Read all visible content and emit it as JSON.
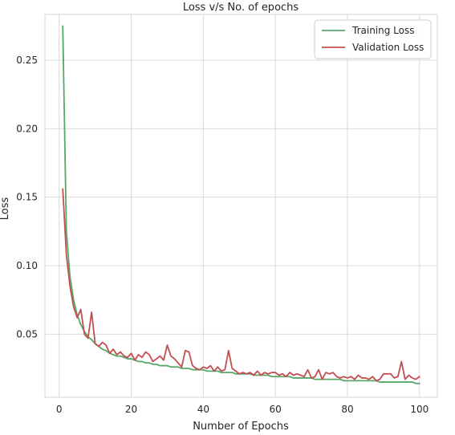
{
  "chart_data": {
    "type": "line",
    "title": "Loss v/s No. of epochs",
    "xlabel": "Number of Epochs",
    "ylabel": "Loss",
    "xlim": [
      -3.95,
      104.95
    ],
    "ylim": [
      0.0039,
      0.2834
    ],
    "x_ticks": [
      0,
      20,
      40,
      60,
      80,
      100
    ],
    "y_ticks": [
      0.05,
      0.1,
      0.15,
      0.2,
      0.25
    ],
    "x_tick_labels": [
      "0",
      "20",
      "40",
      "60",
      "80",
      "100"
    ],
    "y_tick_labels": [
      "0.05",
      "0.10",
      "0.15",
      "0.20",
      "0.25"
    ],
    "grid": true,
    "legend_position": "top-right",
    "x": [
      1,
      2,
      3,
      4,
      5,
      6,
      7,
      8,
      9,
      10,
      11,
      12,
      13,
      14,
      15,
      16,
      17,
      18,
      19,
      20,
      21,
      22,
      23,
      24,
      25,
      26,
      27,
      28,
      29,
      30,
      31,
      32,
      33,
      34,
      35,
      36,
      37,
      38,
      39,
      40,
      41,
      42,
      43,
      44,
      45,
      46,
      47,
      48,
      49,
      50,
      51,
      52,
      53,
      54,
      55,
      56,
      57,
      58,
      59,
      60,
      61,
      62,
      63,
      64,
      65,
      66,
      67,
      68,
      69,
      70,
      71,
      72,
      73,
      74,
      75,
      76,
      77,
      78,
      79,
      80,
      81,
      82,
      83,
      84,
      85,
      86,
      87,
      88,
      89,
      90,
      91,
      92,
      93,
      94,
      95,
      96,
      97,
      98,
      99,
      100
    ],
    "series": [
      {
        "name": "Training Loss",
        "color": "#55a868",
        "values": [
          0.275,
          0.125,
          0.092,
          0.075,
          0.064,
          0.057,
          0.052,
          0.048,
          0.046,
          0.043,
          0.041,
          0.039,
          0.038,
          0.036,
          0.035,
          0.034,
          0.034,
          0.033,
          0.032,
          0.032,
          0.031,
          0.03,
          0.03,
          0.029,
          0.029,
          0.028,
          0.028,
          0.027,
          0.027,
          0.027,
          0.026,
          0.026,
          0.026,
          0.025,
          0.025,
          0.025,
          0.024,
          0.024,
          0.024,
          0.024,
          0.023,
          0.023,
          0.023,
          0.023,
          0.022,
          0.022,
          0.022,
          0.022,
          0.021,
          0.021,
          0.021,
          0.021,
          0.021,
          0.02,
          0.02,
          0.02,
          0.02,
          0.02,
          0.019,
          0.019,
          0.019,
          0.019,
          0.019,
          0.019,
          0.018,
          0.018,
          0.018,
          0.018,
          0.018,
          0.018,
          0.017,
          0.017,
          0.017,
          0.017,
          0.017,
          0.017,
          0.017,
          0.017,
          0.016,
          0.016,
          0.016,
          0.016,
          0.016,
          0.016,
          0.016,
          0.016,
          0.016,
          0.016,
          0.015,
          0.015,
          0.015,
          0.015,
          0.015,
          0.015,
          0.015,
          0.015,
          0.015,
          0.015,
          0.014,
          0.014
        ]
      },
      {
        "name": "Validation Loss",
        "color": "#c44e52",
        "values": [
          0.156,
          0.108,
          0.085,
          0.07,
          0.062,
          0.068,
          0.05,
          0.047,
          0.066,
          0.043,
          0.041,
          0.044,
          0.042,
          0.036,
          0.039,
          0.035,
          0.037,
          0.034,
          0.033,
          0.036,
          0.031,
          0.035,
          0.033,
          0.037,
          0.035,
          0.03,
          0.032,
          0.034,
          0.031,
          0.042,
          0.034,
          0.032,
          0.029,
          0.026,
          0.038,
          0.037,
          0.027,
          0.025,
          0.024,
          0.026,
          0.025,
          0.027,
          0.023,
          0.026,
          0.023,
          0.024,
          0.038,
          0.025,
          0.023,
          0.021,
          0.022,
          0.021,
          0.022,
          0.02,
          0.023,
          0.02,
          0.022,
          0.021,
          0.022,
          0.022,
          0.02,
          0.021,
          0.019,
          0.022,
          0.02,
          0.021,
          0.02,
          0.019,
          0.024,
          0.018,
          0.019,
          0.024,
          0.017,
          0.022,
          0.021,
          0.022,
          0.019,
          0.018,
          0.019,
          0.018,
          0.019,
          0.017,
          0.02,
          0.018,
          0.018,
          0.017,
          0.019,
          0.016,
          0.017,
          0.021,
          0.021,
          0.021,
          0.018,
          0.019,
          0.03,
          0.017,
          0.02,
          0.018,
          0.017,
          0.019
        ]
      }
    ]
  }
}
